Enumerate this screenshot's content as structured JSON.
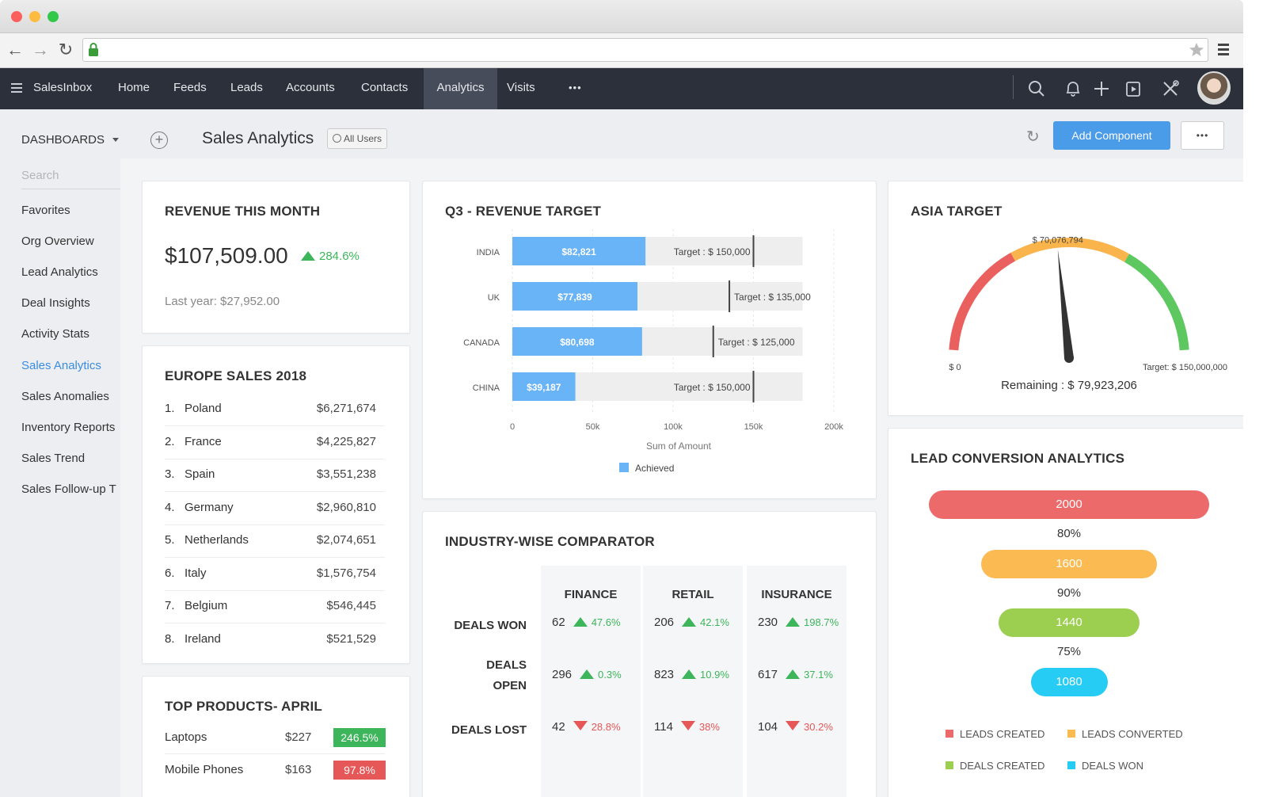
{
  "nav": {
    "brand": "SalesInbox",
    "items": [
      "Home",
      "Feeds",
      "Leads",
      "Accounts",
      "Contacts",
      "Analytics",
      "Visits"
    ],
    "more": "•••"
  },
  "subheader": {
    "dashboards": "DASHBOARDS",
    "title": "Sales Analytics",
    "all_users": "All Users",
    "add_component": "Add Component",
    "more": "•••"
  },
  "sidebar": {
    "search_placeholder": "Search",
    "items": [
      "Favorites",
      "Org Overview",
      "Lead Analytics",
      "Deal Insights",
      "Activity Stats",
      "Sales Analytics",
      "Sales Anomalies",
      "Inventory Reports",
      "Sales Trend",
      "Sales Follow-up T"
    ],
    "active": "Sales Analytics"
  },
  "revenue": {
    "title": "REVENUE THIS MONTH",
    "amount": "$107,509.00",
    "change": "284.6%",
    "last_year": "Last year: $27,952.00"
  },
  "europe": {
    "title": "EUROPE SALES 2018",
    "rows": [
      {
        "rank": "1.",
        "country": "Poland",
        "value": "$6,271,674"
      },
      {
        "rank": "2.",
        "country": "France",
        "value": "$4,225,827"
      },
      {
        "rank": "3.",
        "country": "Spain",
        "value": "$3,551,238"
      },
      {
        "rank": "4.",
        "country": "Germany",
        "value": "$2,960,810"
      },
      {
        "rank": "5.",
        "country": "Netherlands",
        "value": "$2,074,651"
      },
      {
        "rank": "6.",
        "country": "Italy",
        "value": "$1,576,754"
      },
      {
        "rank": "7.",
        "country": "Belgium",
        "value": "$546,445"
      },
      {
        "rank": "8.",
        "country": "Ireland",
        "value": "$521,529"
      }
    ]
  },
  "top_products": {
    "title": "TOP PRODUCTS- APRIL",
    "rows": [
      {
        "name": "Laptops",
        "value": "$227",
        "change": "246.5%",
        "direction": "up"
      },
      {
        "name": "Mobile Phones",
        "value": "$163",
        "change": "97.8%",
        "direction": "down"
      }
    ]
  },
  "q3": {
    "title": "Q3 - REVENUE TARGET",
    "chart_data": {
      "type": "bar",
      "orientation": "horizontal",
      "categories": [
        "INDIA",
        "UK",
        "CANADA",
        "CHINA"
      ],
      "achieved": [
        82821,
        77839,
        80698,
        39187
      ],
      "achieved_labels": [
        "$82,821",
        "$77,839",
        "$80,698",
        "$39,187"
      ],
      "targets": [
        150000,
        135000,
        125000,
        150000
      ],
      "target_labels": [
        "Target : $ 150,000",
        "Target : $ 135,000",
        "Target : $ 125,000",
        "Target : $ 150,000"
      ],
      "xlim": [
        0,
        200000
      ],
      "xticks": [
        "0",
        "50k",
        "100k",
        "150k",
        "200k"
      ],
      "xlabel": "Sum of Amount",
      "legend": "Achieved",
      "achieved_color": "#69b3f7"
    }
  },
  "asia": {
    "title": "ASIA TARGET",
    "chart_data": {
      "type": "gauge",
      "value": 70076794,
      "value_label": "$ 70,076,794",
      "min_label": "$ 0",
      "max": 150000000,
      "max_label": "Target: $ 150,000,000",
      "remaining": "Remaining : $ 79,923,206",
      "colors": [
        "#e9605e",
        "#f9b54c",
        "#5dc860"
      ]
    }
  },
  "industry": {
    "title": "INDUSTRY-WISE COMPARATOR",
    "columns": [
      "FINANCE",
      "RETAIL",
      "INSURANCE"
    ],
    "rows": [
      {
        "label": [
          "DEALS WON"
        ],
        "cells": [
          {
            "value": "62",
            "change": "47.6%",
            "dir": "up"
          },
          {
            "value": "206",
            "change": "42.1%",
            "dir": "up"
          },
          {
            "value": "230",
            "change": "198.7%",
            "dir": "up"
          }
        ]
      },
      {
        "label": [
          "DEALS",
          "OPEN"
        ],
        "cells": [
          {
            "value": "296",
            "change": "0.3%",
            "dir": "up"
          },
          {
            "value": "823",
            "change": "10.9%",
            "dir": "up"
          },
          {
            "value": "617",
            "change": "37.1%",
            "dir": "up"
          }
        ]
      },
      {
        "label": [
          "DEALS LOST"
        ],
        "cells": [
          {
            "value": "42",
            "change": "28.8%",
            "dir": "down"
          },
          {
            "value": "114",
            "change": "38%",
            "dir": "down"
          },
          {
            "value": "104",
            "change": "30.2%",
            "dir": "down"
          }
        ]
      }
    ]
  },
  "lead_conversion": {
    "title": "LEAD CONVERSION ANALYTICS",
    "chart_data": {
      "type": "funnel",
      "stages": [
        {
          "value": 2000,
          "label": "2000",
          "color": "#ec6a6a"
        },
        {
          "value": 1600,
          "label": "1600",
          "color": "#fbbb52"
        },
        {
          "value": 1440,
          "label": "1440",
          "color": "#9ccf4f"
        },
        {
          "value": 1080,
          "label": "1080",
          "color": "#27ccf5"
        }
      ],
      "rates": [
        "80%",
        "90%",
        "75%"
      ],
      "legend": [
        {
          "name": "LEADS CREATED",
          "color": "#ec6a6a"
        },
        {
          "name": "LEADS CONVERTED",
          "color": "#fbbb52"
        },
        {
          "name": "DEALS CREATED",
          "color": "#9ccf4f"
        },
        {
          "name": "DEALS WON",
          "color": "#27ccf5"
        }
      ]
    }
  }
}
